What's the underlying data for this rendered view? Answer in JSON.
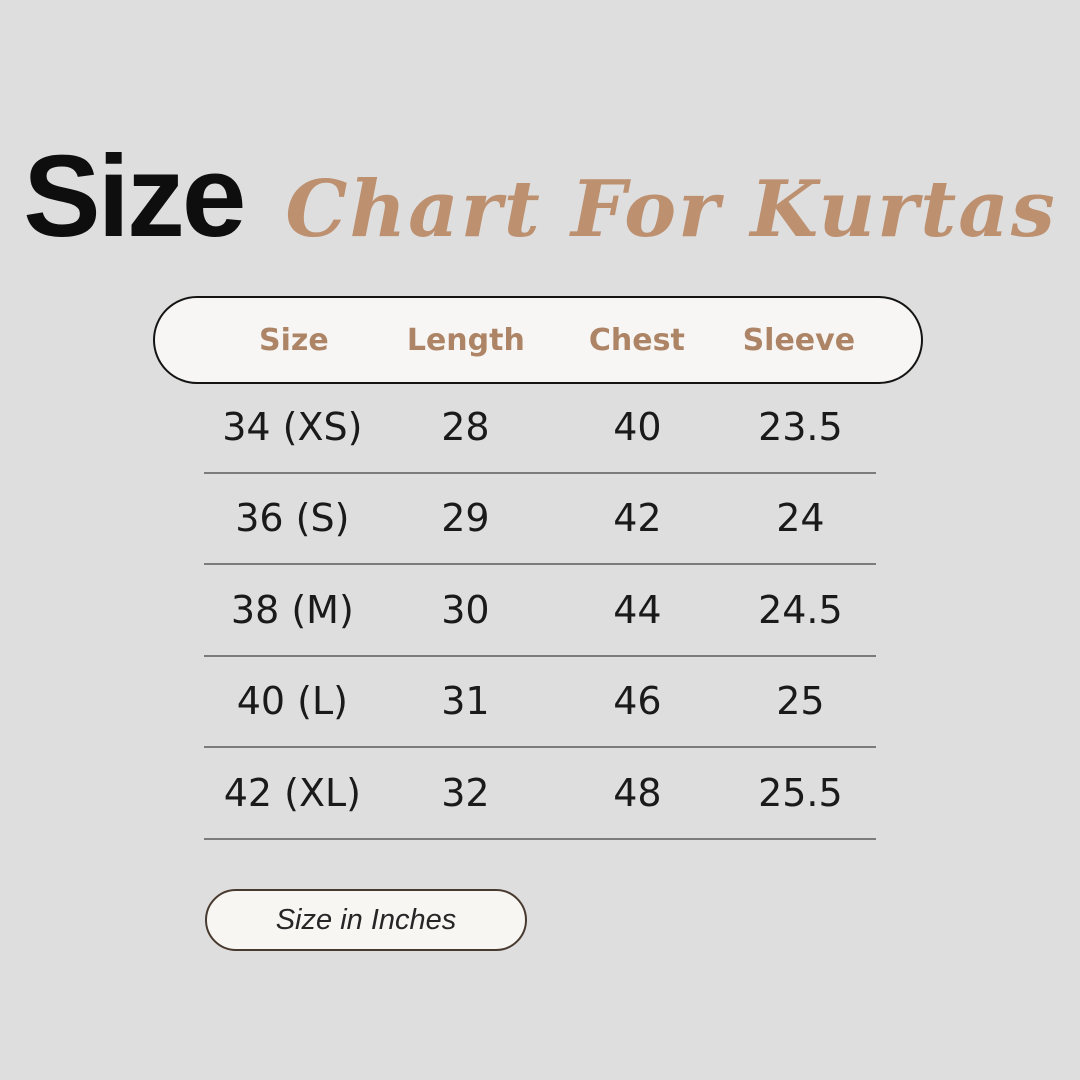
{
  "title": {
    "main": "Size",
    "accent": "Chart For Kurtas"
  },
  "chart_data": {
    "type": "table",
    "title": "Size Chart For Kurtas",
    "columns": [
      "Size",
      "Length",
      "Chest",
      "Sleeve"
    ],
    "rows": [
      [
        "34 (XS)",
        "28",
        "40",
        "23.5"
      ],
      [
        "36 (S)",
        "29",
        "42",
        "24"
      ],
      [
        "38 (M)",
        "30",
        "44",
        "24.5"
      ],
      [
        "40 (L)",
        "31",
        "46",
        "25"
      ],
      [
        "42 (XL)",
        "32",
        "48",
        "25.5"
      ]
    ],
    "unit_note": "Size in Inches"
  },
  "colors": {
    "background": "#dedede",
    "pill_background": "#f7f6f4",
    "header_pill_border": "#141414",
    "header_text": "#ad8566",
    "title_accent": "#bd9070",
    "title_main": "#0e0e0e",
    "row_text": "#1a1a1a",
    "divider": "#7b7b7b",
    "footer_border": "#483a2f"
  }
}
